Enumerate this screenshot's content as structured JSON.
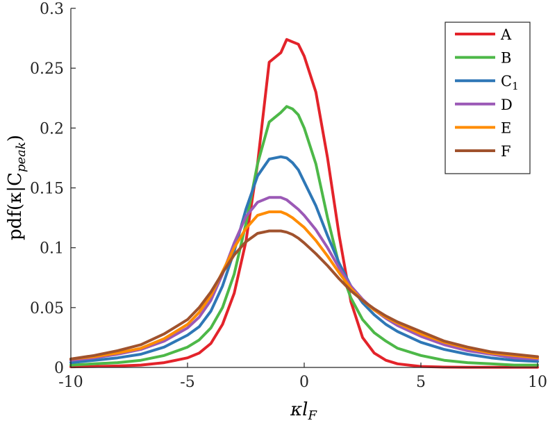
{
  "chart_data": {
    "type": "line",
    "title": "",
    "xlabel_main": "κl",
    "xlabel_sub": "F",
    "ylabel_main": "pdf(κ|C",
    "ylabel_sub": "peak",
    "ylabel_close": ")",
    "xlim": [
      -10,
      10
    ],
    "ylim": [
      0,
      0.3
    ],
    "xticks": [
      -10,
      -5,
      0,
      5,
      10
    ],
    "xtick_labels": [
      "-10",
      "-5",
      "0",
      "5",
      "10"
    ],
    "yticks": [
      0,
      0.05,
      0.1,
      0.15,
      0.2,
      0.25,
      0.3
    ],
    "ytick_labels": [
      "0",
      "0.05",
      "0.1",
      "0.15",
      "0.2",
      "0.25",
      "0.3"
    ],
    "grid": false,
    "legend_position": "top-right",
    "x": [
      -10,
      -9,
      -8,
      -7,
      -6,
      -5,
      -4.5,
      -4,
      -3.5,
      -3,
      -2.5,
      -2,
      -1.5,
      -1,
      -0.75,
      -0.5,
      -0.25,
      0,
      0.5,
      1,
      1.5,
      2,
      2.5,
      3,
      3.5,
      4,
      5,
      6,
      7,
      8,
      9,
      10
    ],
    "series": [
      {
        "name": "A",
        "sub": "",
        "color": "#e3232a",
        "values": [
          0.0005,
          0.0008,
          0.0012,
          0.002,
          0.004,
          0.008,
          0.012,
          0.02,
          0.036,
          0.062,
          0.105,
          0.17,
          0.255,
          0.263,
          0.274,
          0.272,
          0.27,
          0.26,
          0.23,
          0.175,
          0.11,
          0.055,
          0.025,
          0.012,
          0.006,
          0.003,
          0.0008,
          0.0003,
          0.0002,
          0.0001,
          0.0001,
          0.0001
        ]
      },
      {
        "name": "B",
        "sub": "",
        "color": "#4db848",
        "values": [
          0.002,
          0.003,
          0.004,
          0.006,
          0.01,
          0.017,
          0.023,
          0.033,
          0.05,
          0.078,
          0.12,
          0.17,
          0.205,
          0.213,
          0.218,
          0.216,
          0.211,
          0.2,
          0.17,
          0.125,
          0.085,
          0.058,
          0.04,
          0.029,
          0.022,
          0.016,
          0.01,
          0.006,
          0.004,
          0.003,
          0.002,
          0.002
        ]
      },
      {
        "name": "C",
        "sub": "1",
        "color": "#2e77b6",
        "values": [
          0.004,
          0.006,
          0.008,
          0.011,
          0.017,
          0.027,
          0.034,
          0.047,
          0.068,
          0.097,
          0.132,
          0.16,
          0.174,
          0.176,
          0.175,
          0.171,
          0.165,
          0.155,
          0.135,
          0.11,
          0.087,
          0.068,
          0.054,
          0.044,
          0.036,
          0.03,
          0.021,
          0.015,
          0.011,
          0.008,
          0.006,
          0.005
        ]
      },
      {
        "name": "D",
        "sub": "",
        "color": "#9b59b6",
        "values": [
          0.006,
          0.008,
          0.011,
          0.015,
          0.022,
          0.033,
          0.042,
          0.056,
          0.078,
          0.104,
          0.126,
          0.138,
          0.142,
          0.142,
          0.14,
          0.136,
          0.132,
          0.127,
          0.115,
          0.1,
          0.083,
          0.068,
          0.057,
          0.048,
          0.041,
          0.035,
          0.026,
          0.019,
          0.014,
          0.011,
          0.008,
          0.007
        ]
      },
      {
        "name": "E",
        "sub": "",
        "color": "#ff8c00",
        "values": [
          0.007,
          0.009,
          0.012,
          0.016,
          0.024,
          0.036,
          0.046,
          0.06,
          0.08,
          0.1,
          0.116,
          0.127,
          0.13,
          0.13,
          0.128,
          0.125,
          0.121,
          0.117,
          0.106,
          0.093,
          0.079,
          0.066,
          0.056,
          0.048,
          0.042,
          0.037,
          0.028,
          0.021,
          0.016,
          0.012,
          0.01,
          0.008
        ]
      },
      {
        "name": "F",
        "sub": "",
        "color": "#a0522d",
        "values": [
          0.007,
          0.01,
          0.014,
          0.019,
          0.028,
          0.04,
          0.05,
          0.063,
          0.079,
          0.094,
          0.105,
          0.112,
          0.114,
          0.114,
          0.113,
          0.111,
          0.108,
          0.104,
          0.095,
          0.085,
          0.074,
          0.064,
          0.056,
          0.049,
          0.043,
          0.038,
          0.03,
          0.022,
          0.017,
          0.013,
          0.011,
          0.009
        ]
      }
    ]
  }
}
